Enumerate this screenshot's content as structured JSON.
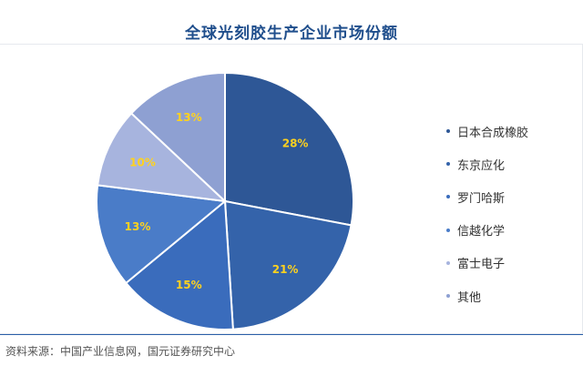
{
  "chart_data": {
    "type": "pie",
    "title": "全球光刻胶生产企业市场份额",
    "series": [
      {
        "name": "日本合成橡胶",
        "value": 28,
        "label": "28%",
        "color": "#2e5796"
      },
      {
        "name": "东京应化",
        "value": 21,
        "label": "21%",
        "color": "#3463aa"
      },
      {
        "name": "罗门哈斯",
        "value": 15,
        "label": "15%",
        "color": "#3a6cbc"
      },
      {
        "name": "信越化学",
        "value": 13,
        "label": "13%",
        "color": "#4a7cc8"
      },
      {
        "name": "富士电子",
        "value": 10,
        "label": "10%",
        "color": "#a7b4de"
      },
      {
        "name": "其他",
        "value": 13,
        "label": "13%",
        "color": "#8ea0d2"
      }
    ],
    "legend_position": "right",
    "label_color": "#ffd21e"
  },
  "source": "资料来源：中国产业信息网，国元证券研究中心"
}
